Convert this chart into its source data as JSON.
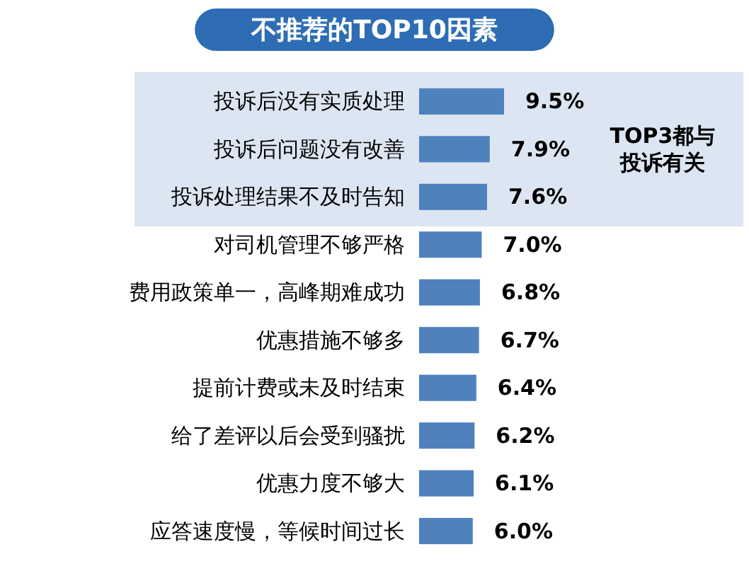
{
  "chart_data": {
    "type": "bar",
    "orientation": "horizontal",
    "title": "不推荐的TOP10因素",
    "categories": [
      "投诉后没有实质处理",
      "投诉后问题没有改善",
      "投诉处理结果不及时告知",
      "对司机管理不够严格",
      "费用政策单一，高峰期难成功",
      "优惠措施不够多",
      "提前计费或未及时结束",
      "给了差评以后会受到骚扰",
      "优惠力度不够大",
      "应答速度慢，等候时间过长"
    ],
    "values": [
      9.5,
      7.9,
      7.6,
      7.0,
      6.8,
      6.7,
      6.4,
      6.2,
      6.1,
      6.0
    ],
    "value_labels": [
      "9.5%",
      "7.9%",
      "7.6%",
      "7.0%",
      "6.8%",
      "6.7%",
      "6.4%",
      "6.2%",
      "6.1%",
      "6.0%"
    ],
    "color": "#4f81bd",
    "xlim": [
      0,
      9.5
    ],
    "tick_labels": "y",
    "bands": [
      {
        "axis": "y",
        "from": "投诉后没有实质处理",
        "to": "投诉处理结果不及时告知",
        "label": "TOP3都与投诉有关",
        "color": "#dce6f2"
      }
    ]
  }
}
